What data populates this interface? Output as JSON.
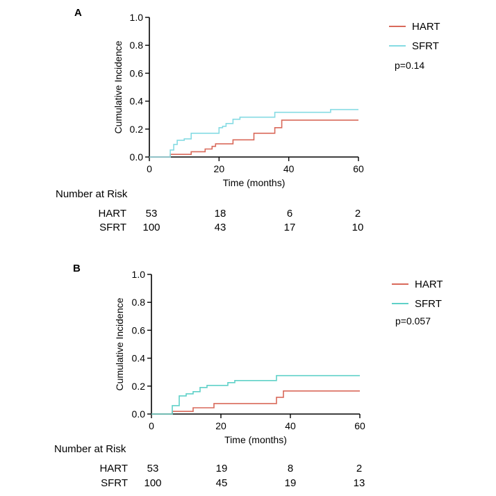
{
  "chart_data": [
    {
      "panel_label": "A",
      "type": "line",
      "step": true,
      "ylabel": "Cumulative Incidence",
      "xlabel": "Time (months)",
      "xlim": [
        0,
        60
      ],
      "ylim": [
        0,
        1.0
      ],
      "x_ticks": [
        0,
        20,
        40,
        60
      ],
      "x_tick_labels": [
        "0",
        "20",
        "40",
        "60"
      ],
      "y_ticks": [
        0,
        0.2,
        0.4,
        0.6,
        0.8,
        1.0
      ],
      "y_tick_labels": [
        "0.0",
        "0.2",
        "0.4",
        "0.6",
        "0.8",
        "1.0"
      ],
      "legend_position": "top-right",
      "annotation": "p=0.14",
      "series": [
        {
          "name": "HART",
          "color": "#d9695a",
          "points": [
            [
              0,
              0
            ],
            [
              6,
              0
            ],
            [
              6,
              0.019
            ],
            [
              12,
              0.019
            ],
            [
              12,
              0.038
            ],
            [
              16,
              0.038
            ],
            [
              16,
              0.057
            ],
            [
              18,
              0.057
            ],
            [
              18,
              0.076
            ],
            [
              19,
              0.076
            ],
            [
              19,
              0.094
            ],
            [
              24,
              0.094
            ],
            [
              24,
              0.123
            ],
            [
              30,
              0.123
            ],
            [
              30,
              0.17
            ],
            [
              36,
              0.17
            ],
            [
              36,
              0.21
            ],
            [
              38,
              0.21
            ],
            [
              38,
              0.264
            ],
            [
              60,
              0.264
            ]
          ]
        },
        {
          "name": "SFRT",
          "color": "#85dbe3",
          "points": [
            [
              0,
              0
            ],
            [
              6,
              0
            ],
            [
              6,
              0.05
            ],
            [
              7,
              0.05
            ],
            [
              7,
              0.09
            ],
            [
              8,
              0.09
            ],
            [
              8,
              0.12
            ],
            [
              10,
              0.12
            ],
            [
              10,
              0.13
            ],
            [
              12,
              0.13
            ],
            [
              12,
              0.17
            ],
            [
              20,
              0.17
            ],
            [
              20,
              0.21
            ],
            [
              21,
              0.21
            ],
            [
              21,
              0.22
            ],
            [
              22,
              0.22
            ],
            [
              22,
              0.24
            ],
            [
              24,
              0.24
            ],
            [
              24,
              0.27
            ],
            [
              26,
              0.27
            ],
            [
              26,
              0.285
            ],
            [
              36,
              0.285
            ],
            [
              36,
              0.32
            ],
            [
              52,
              0.32
            ],
            [
              52,
              0.34
            ],
            [
              60,
              0.34
            ]
          ]
        }
      ],
      "risk_table": {
        "title": "Number at Risk",
        "times": [
          0,
          20,
          40,
          60
        ],
        "rows": [
          {
            "name": "HART",
            "values": [
              "53",
              "18",
              "6",
              "2"
            ]
          },
          {
            "name": "SFRT",
            "values": [
              "100",
              "43",
              "17",
              "10"
            ]
          }
        ]
      }
    },
    {
      "panel_label": "B",
      "type": "line",
      "step": true,
      "ylabel": "Cumulative Incidence",
      "xlabel": "Time (months)",
      "xlim": [
        0,
        60
      ],
      "ylim": [
        0,
        1.0
      ],
      "x_ticks": [
        0,
        20,
        40,
        60
      ],
      "x_tick_labels": [
        "0",
        "20",
        "40",
        "60"
      ],
      "y_ticks": [
        0,
        0.2,
        0.4,
        0.6,
        0.8,
        1.0
      ],
      "y_tick_labels": [
        "0.0",
        "0.2",
        "0.4",
        "0.6",
        "0.8",
        "1.0"
      ],
      "legend_position": "top-right",
      "annotation": "p=0.057",
      "series": [
        {
          "name": "HART",
          "color": "#d9695a",
          "points": [
            [
              0,
              0
            ],
            [
              6,
              0
            ],
            [
              6,
              0.019
            ],
            [
              12,
              0.019
            ],
            [
              12,
              0.045
            ],
            [
              18,
              0.045
            ],
            [
              18,
              0.075
            ],
            [
              36,
              0.075
            ],
            [
              36,
              0.12
            ],
            [
              38,
              0.12
            ],
            [
              38,
              0.165
            ],
            [
              60,
              0.165
            ]
          ]
        },
        {
          "name": "SFRT",
          "color": "#5fd1c8",
          "points": [
            [
              0,
              0
            ],
            [
              6,
              0
            ],
            [
              6,
              0.06
            ],
            [
              8,
              0.06
            ],
            [
              8,
              0.13
            ],
            [
              10,
              0.13
            ],
            [
              10,
              0.145
            ],
            [
              12,
              0.145
            ],
            [
              12,
              0.16
            ],
            [
              14,
              0.16
            ],
            [
              14,
              0.19
            ],
            [
              16,
              0.19
            ],
            [
              16,
              0.205
            ],
            [
              22,
              0.205
            ],
            [
              22,
              0.225
            ],
            [
              24,
              0.225
            ],
            [
              24,
              0.24
            ],
            [
              36,
              0.24
            ],
            [
              36,
              0.275
            ],
            [
              60,
              0.275
            ]
          ]
        }
      ],
      "risk_table": {
        "title": "Number at Risk",
        "times": [
          0,
          20,
          40,
          60
        ],
        "rows": [
          {
            "name": "HART",
            "values": [
              "53",
              "19",
              "8",
              "2"
            ]
          },
          {
            "name": "SFRT",
            "values": [
              "100",
              "45",
              "19",
              "13"
            ]
          }
        ]
      }
    }
  ]
}
